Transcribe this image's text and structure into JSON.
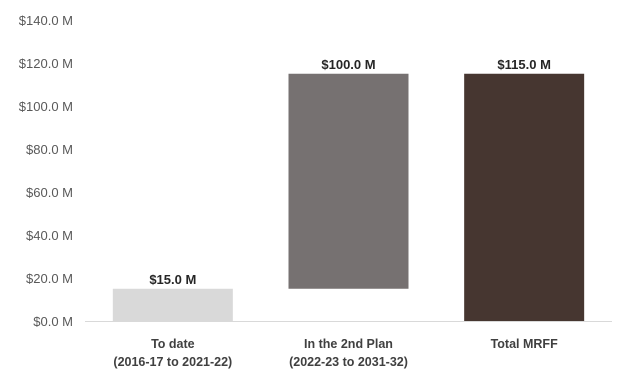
{
  "chart_data": {
    "type": "bar",
    "subtype": "waterfall",
    "title": "",
    "xlabel": "",
    "ylabel": "",
    "ylim": [
      0,
      140
    ],
    "y_unit": "$M",
    "y_ticks": [
      0,
      20,
      40,
      60,
      80,
      100,
      120,
      140
    ],
    "y_tick_labels": [
      "$0.0 M",
      "$20.0 M",
      "$40.0 M",
      "$60.0 M",
      "$80.0 M",
      "$100.0 M",
      "$120.0 M",
      "$140.0 M"
    ],
    "grid": false,
    "legend": "none",
    "categories": [
      [
        "To date",
        "(2016-17 to 2021-22)"
      ],
      [
        "In the 2nd Plan",
        "(2022-23 to 2031-32)"
      ],
      [
        "Total MRFF"
      ]
    ],
    "bars": [
      {
        "start": 0,
        "end": 15,
        "value": 15,
        "label": "$15.0 M",
        "color": "#d9d9d9"
      },
      {
        "start": 15,
        "end": 115,
        "value": 100,
        "label": "$100.0 M",
        "color": "#767171"
      },
      {
        "start": 0,
        "end": 115,
        "value": 115,
        "label": "$115.0 M",
        "color": "#463630"
      }
    ]
  }
}
